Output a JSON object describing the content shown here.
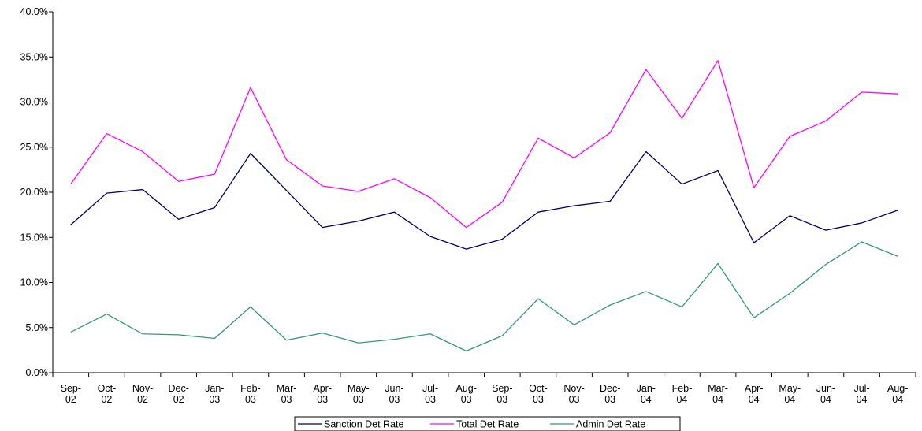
{
  "chart_data": {
    "type": "line",
    "categories": [
      [
        "Sep-",
        "02"
      ],
      [
        "Oct-",
        "02"
      ],
      [
        "Nov-",
        "02"
      ],
      [
        "Dec-",
        "02"
      ],
      [
        "Jan-",
        "03"
      ],
      [
        "Feb-",
        "03"
      ],
      [
        "Mar-",
        "03"
      ],
      [
        "Apr-",
        "03"
      ],
      [
        "May-",
        "03"
      ],
      [
        "Jun-",
        "03"
      ],
      [
        "Jul-",
        "03"
      ],
      [
        "Aug-",
        "03"
      ],
      [
        "Sep-",
        "03"
      ],
      [
        "Oct-",
        "03"
      ],
      [
        "Nov-",
        "03"
      ],
      [
        "Dec-",
        "03"
      ],
      [
        "Jan-",
        "04"
      ],
      [
        "Feb-",
        "04"
      ],
      [
        "Mar-",
        "04"
      ],
      [
        "Apr-",
        "04"
      ],
      [
        "May-",
        "04"
      ],
      [
        "Jun-",
        "04"
      ],
      [
        "Jul-",
        "04"
      ],
      [
        "Aug-",
        "04"
      ]
    ],
    "y_ticks": [
      "0.0%",
      "5.0%",
      "10.0%",
      "15.0%",
      "20.0%",
      "25.0%",
      "30.0%",
      "35.0%",
      "40.0%"
    ],
    "ylim": [
      0,
      40
    ],
    "title": "",
    "xlabel": "",
    "ylabel": "",
    "grid": false,
    "legend_position": "bottom",
    "series": [
      {
        "name": "Sanction Det Rate",
        "color": "#000066",
        "values": [
          16.4,
          19.9,
          20.3,
          17.0,
          18.3,
          24.3,
          20.2,
          16.1,
          16.8,
          17.8,
          15.1,
          13.7,
          14.8,
          17.8,
          18.5,
          19.0,
          24.5,
          20.9,
          22.4,
          14.4,
          17.4,
          15.8,
          16.6,
          18.0
        ]
      },
      {
        "name": "Total Det Rate",
        "color": "#ff00ff",
        "values": [
          20.9,
          26.5,
          24.5,
          21.2,
          22.0,
          31.6,
          23.6,
          20.7,
          20.1,
          21.5,
          19.4,
          16.1,
          18.9,
          26.0,
          23.8,
          26.6,
          33.6,
          28.2,
          34.6,
          20.5,
          26.2,
          27.9,
          31.1,
          30.9
        ]
      },
      {
        "name": "Admin Det Rate",
        "color": "#339977",
        "values": [
          4.5,
          6.5,
          4.3,
          4.2,
          3.8,
          7.3,
          3.6,
          4.4,
          3.3,
          3.7,
          4.3,
          2.4,
          4.1,
          8.2,
          5.3,
          7.5,
          9.0,
          7.3,
          12.1,
          6.1,
          8.8,
          12.0,
          14.5,
          12.9
        ]
      }
    ]
  }
}
